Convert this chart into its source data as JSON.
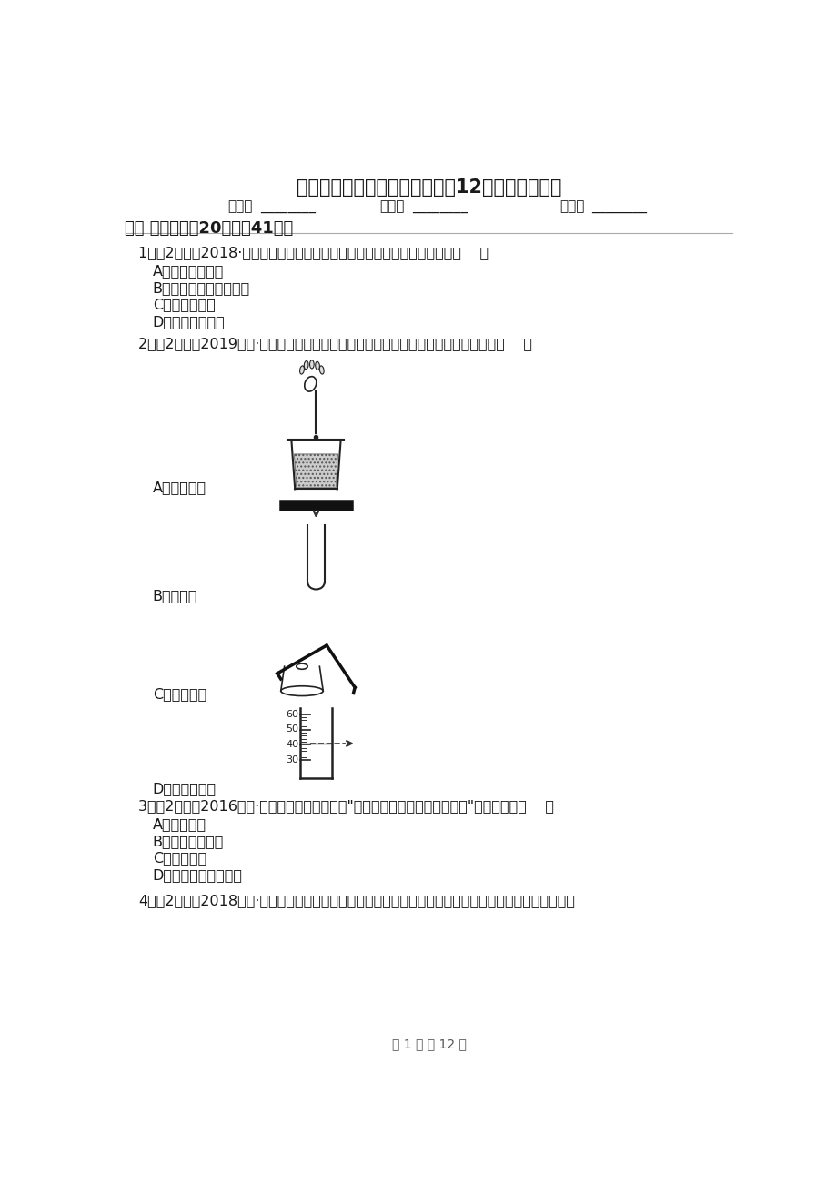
{
  "title": "吉林省吉林市九年级上学期化学12月月考考试试卷",
  "name_label": "姓名：",
  "class_label": "班级：",
  "score_label": "成绩：",
  "underline": "________",
  "section1": "一、 单选题（共20题；共41分）",
  "q1_text": "1．（2分）（2018·大渡口模拟）下列物质的用途中，利用其物理性质的是（    ）",
  "q1_opts": [
    "A．氮气做保护气",
    "B．稀有气体用作电光源",
    "C．氢气做燃料",
    "D．氧气用于炼钢"
  ],
  "q2_text": "2．（2分）（2019九上·秦都期末）实验是学习化学的基础，下列实验操作中正确的是（    ）",
  "q2_opts": [
    "A．滴加液体",
    "B．试管架",
    "C．加热液体",
    "D．读液体体积"
  ],
  "q3_text": "3．（2分）（2016九上·宝丰期中）下列做法与\"创建卫生城市，建设水绿盐城\"不吻合的是（    ）",
  "q3_opts": [
    "A．植树种草",
    "B．就地焚烧垃圾",
    "C．节能减排",
    "D．公共场所禁止吸烟"
  ],
  "q4_text": "4．（2分）（2018九下·临河月考）铁、氧化铜、石灰水、稀盐酸、石灰石之间的反应关系如图所示，图中",
  "footer": "第 1 页 共 12 页",
  "bg_color": "#ffffff",
  "dark": "#1a1a1a",
  "gray": "#555555",
  "title_fs": 15,
  "body_fs": 11.5,
  "section_fs": 13
}
